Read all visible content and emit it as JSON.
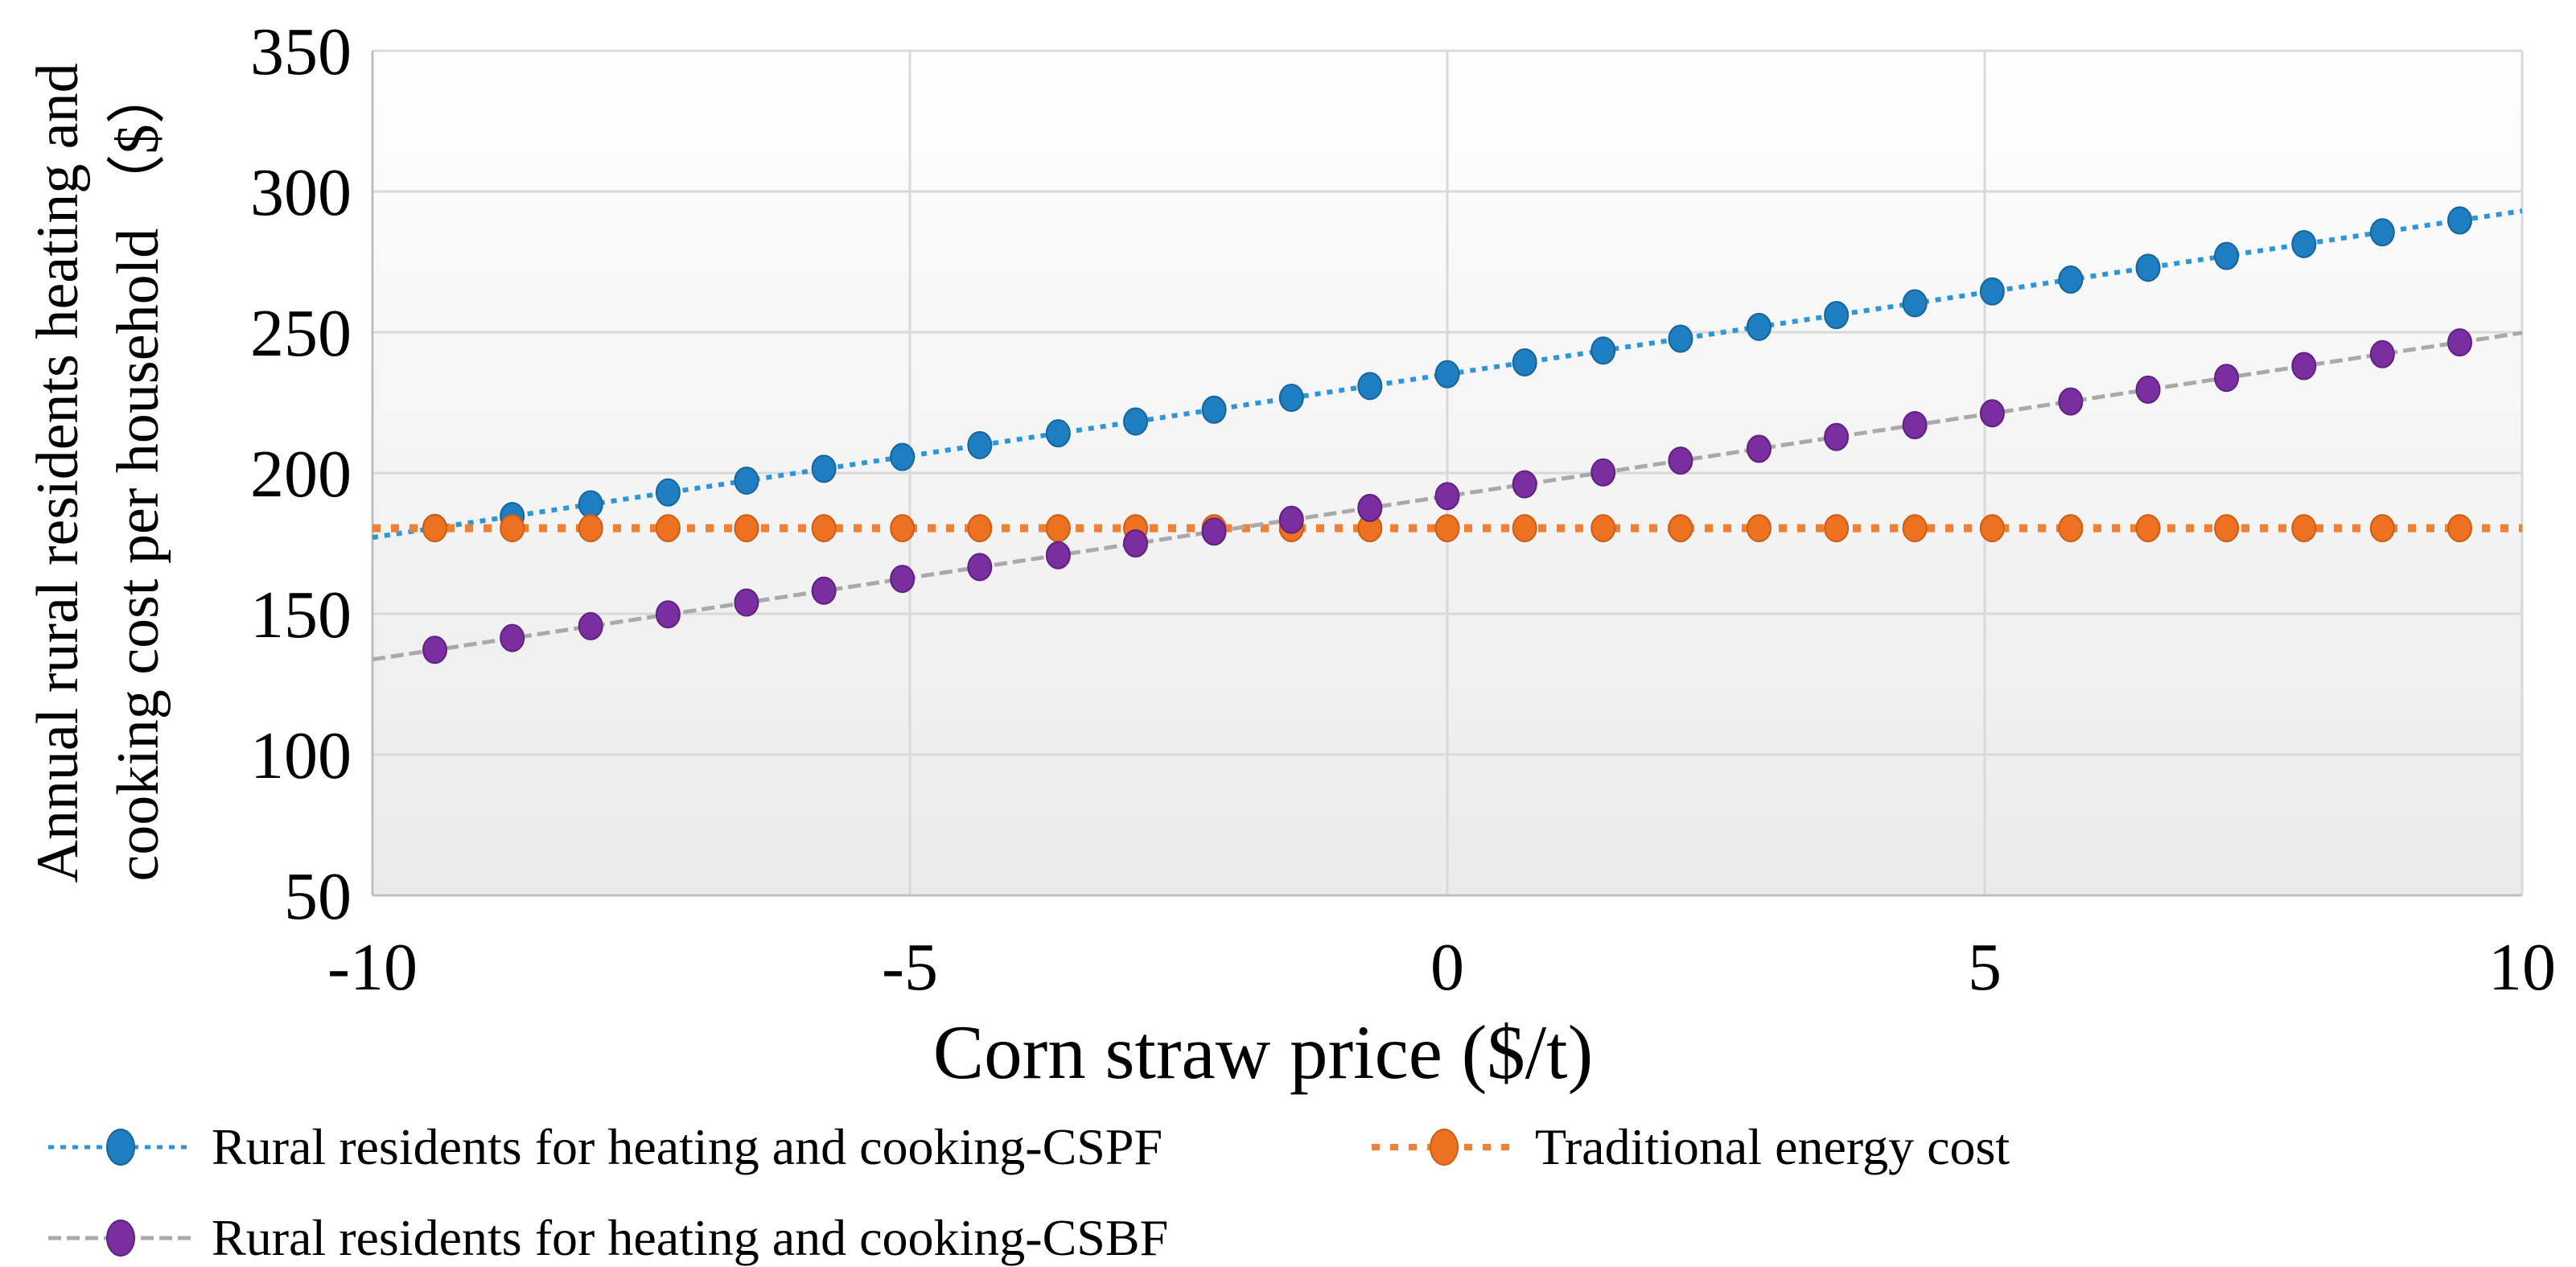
{
  "figure": {
    "y_axis_title_line1": "Annual rural residents heating and",
    "y_axis_title_line2": "cooking cost per household （$）",
    "x_axis_title": "Corn straw price ($/t)"
  },
  "colors": {
    "gridline": "#d9d9d9",
    "axis_line": "#bfbfbf",
    "cspf_marker": "#1f7ec2",
    "cspf_line": "#2e96d6",
    "traditional_marker": "#ed7120",
    "traditional_line": "#f08034",
    "csbf_marker": "#7a2ea0",
    "csbf_line": "#a9a9a9"
  },
  "chart_data": {
    "type": "line",
    "title": "",
    "xlabel": "Corn straw price ($/t)",
    "ylabel": "Annual rural residents heating and cooking cost per household ($)",
    "xlim": [
      -10,
      10
    ],
    "ylim": [
      50,
      350
    ],
    "x_ticks": [
      -10,
      -5,
      0,
      5,
      10
    ],
    "y_ticks": [
      50,
      100,
      150,
      200,
      250,
      300,
      350
    ],
    "grid": true,
    "legend_position": "bottom",
    "x": [
      -9.42,
      -8.7,
      -7.97,
      -7.25,
      -6.52,
      -5.8,
      -5.07,
      -4.35,
      -3.62,
      -2.9,
      -2.17,
      -1.45,
      -0.72,
      0.0,
      0.72,
      1.45,
      2.17,
      2.9,
      3.62,
      4.35,
      5.07,
      5.8,
      6.52,
      7.25,
      7.97,
      8.7,
      9.42
    ],
    "series": [
      {
        "id": "cspf",
        "name": "Rural residents for heating and cooking-CSPF",
        "marker_color": "#1f7ec2",
        "marker_edge_color": "#156598",
        "line_color": "#2e96d6",
        "line_dash": "7 8",
        "line_width": 6,
        "values": [
          180.5,
          184.7,
          188.9,
          193.1,
          197.3,
          201.5,
          205.7,
          209.9,
          214.1,
          218.3,
          222.5,
          226.7,
          230.9,
          235.1,
          239.3,
          243.5,
          247.7,
          251.9,
          256.1,
          260.3,
          264.5,
          268.7,
          272.9,
          277.1,
          281.3,
          285.5,
          289.7
        ],
        "line_endpoints_y": [
          177.1,
          293.1
        ]
      },
      {
        "id": "traditional",
        "name": "Traditional energy cost",
        "marker_color": "#ed7120",
        "marker_edge_color": "#c95f15",
        "line_color": "#f08034",
        "line_dash": "10 13",
        "line_width": 10,
        "values": [
          180.4,
          180.4,
          180.4,
          180.4,
          180.4,
          180.4,
          180.4,
          180.4,
          180.4,
          180.4,
          180.4,
          180.4,
          180.4,
          180.4,
          180.4,
          180.4,
          180.4,
          180.4,
          180.4,
          180.4,
          180.4,
          180.4,
          180.4,
          180.4,
          180.4,
          180.4,
          180.4
        ],
        "line_endpoints_y": [
          180.4,
          180.4
        ]
      },
      {
        "id": "csbf",
        "name": "Rural residents for heating and cooking-CSBF",
        "marker_color": "#7a2ea0",
        "marker_edge_color": "#5e2180",
        "line_color": "#a9a9a9",
        "line_dash": "16 7",
        "line_width": 5,
        "values": [
          137.2,
          141.4,
          145.6,
          149.8,
          154.0,
          158.2,
          162.4,
          166.6,
          170.8,
          175.0,
          179.2,
          183.4,
          187.6,
          191.8,
          196.0,
          200.2,
          204.4,
          208.6,
          212.8,
          217.0,
          221.2,
          225.4,
          229.6,
          233.8,
          238.0,
          242.2,
          246.4
        ],
        "line_endpoints_y": [
          133.8,
          249.8
        ]
      }
    ]
  },
  "legend": {
    "items": [
      {
        "label": "Rural residents for heating and cooking-CSPF"
      },
      {
        "label": "Traditional energy cost"
      },
      {
        "label": "Rural residents for heating and cooking-CSBF"
      }
    ]
  }
}
